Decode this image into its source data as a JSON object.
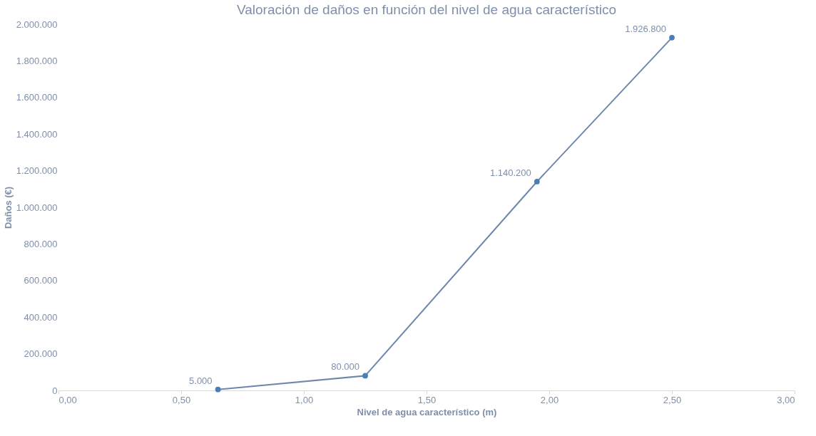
{
  "chart_data": {
    "type": "line",
    "title": "Valoración de daños en función del nivel de agua característico",
    "xlabel": "Nivel de agua característico (m)",
    "ylabel": "Daños (€)",
    "x": [
      0.65,
      1.25,
      1.95,
      2.5
    ],
    "series": [
      {
        "color": "#6f87ad",
        "values": [
          5000,
          80000,
          1140200,
          1926800
        ],
        "value_labels": [
          "5.000",
          "80.000",
          "1.140.200",
          "1.926.800"
        ]
      }
    ],
    "xlim": [
      0,
      3
    ],
    "xticks": [
      {
        "value": 0,
        "label": "0,00"
      },
      {
        "value": 0.5,
        "label": "0,50"
      },
      {
        "value": 1,
        "label": "1,00"
      },
      {
        "value": 1.5,
        "label": "1,50"
      },
      {
        "value": 2,
        "label": "2,00"
      },
      {
        "value": 2.5,
        "label": "2,50"
      },
      {
        "value": 3,
        "label": "3,00"
      }
    ],
    "ylim": [
      0,
      2000000
    ],
    "yticks": [
      0,
      {
        "value": 200000,
        "label": "200.000"
      },
      {
        "value": 400000,
        "label": "400.000"
      },
      {
        "value": 600000,
        "label": "600.000"
      },
      {
        "value": 800000,
        "label": "800.000"
      },
      {
        "value": 1000000,
        "label": "1.000.000"
      },
      {
        "value": 1200000,
        "label": "1.200.000"
      },
      {
        "value": 1400000,
        "label": "1.400.000"
      },
      {
        "value": 1600000,
        "label": "1.600.000"
      },
      {
        "value": 1800000,
        "label": "1.800.000"
      },
      {
        "value": 2000000,
        "label": "2.000.000"
      }
    ],
    "grid": false,
    "marker": "circle",
    "line_style": "solid"
  }
}
